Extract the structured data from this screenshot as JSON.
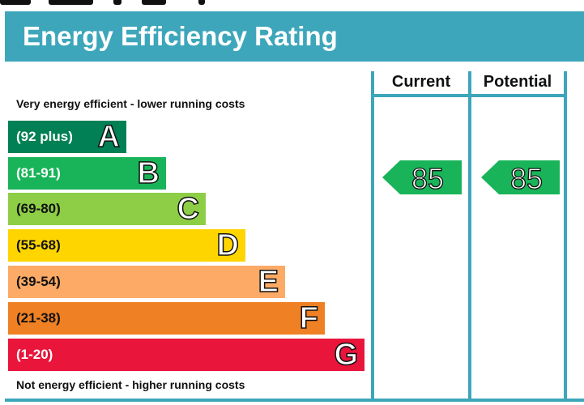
{
  "title": "Energy Efficiency Rating",
  "columns": {
    "current": "Current",
    "potential": "Potential"
  },
  "captions": {
    "top": "Very energy efficient - lower running costs",
    "bottom": "Not energy efficient - higher running costs"
  },
  "colors": {
    "header": "#3da6bb",
    "A": "#008054",
    "B": "#19b459",
    "C": "#8dce46",
    "D": "#ffd500",
    "E": "#fcaa65",
    "F": "#ef8023",
    "G": "#e9153b",
    "rating_arrow": "#19b459"
  },
  "chart_data": {
    "type": "bar",
    "categories": [
      "A",
      "B",
      "C",
      "D",
      "E",
      "F",
      "G"
    ],
    "bands": [
      {
        "letter": "A",
        "range": "(92 plus)",
        "min": 92,
        "max": 100
      },
      {
        "letter": "B",
        "range": "(81-91)",
        "min": 81,
        "max": 91
      },
      {
        "letter": "C",
        "range": "(69-80)",
        "min": 69,
        "max": 80
      },
      {
        "letter": "D",
        "range": "(55-68)",
        "min": 55,
        "max": 68
      },
      {
        "letter": "E",
        "range": "(39-54)",
        "min": 39,
        "max": 54
      },
      {
        "letter": "F",
        "range": "(21-38)",
        "min": 21,
        "max": 38
      },
      {
        "letter": "G",
        "range": "(1-20)",
        "min": 1,
        "max": 20
      }
    ],
    "current": {
      "value": 85,
      "band": "B"
    },
    "potential": {
      "value": 85,
      "band": "B"
    }
  }
}
